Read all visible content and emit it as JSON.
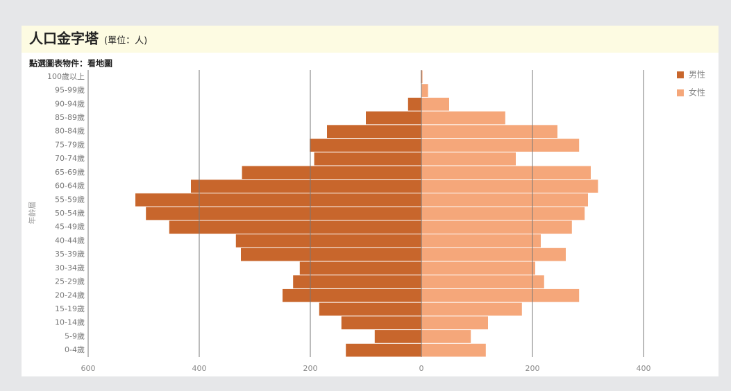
{
  "chart_data": {
    "type": "pyramid",
    "title": "人口金字塔",
    "unit": "(單位：人)",
    "note": "點選圖表物件：看地圖",
    "y_label": "年齡層",
    "categories": [
      "100歲以上",
      "95-99歲",
      "90-94歲",
      "85-89歲",
      "80-84歲",
      "75-79歲",
      "70-74歲",
      "65-69歲",
      "60-64歲",
      "55-59歲",
      "50-54歲",
      "45-49歲",
      "40-44歲",
      "35-39歲",
      "30-34歲",
      "25-29歲",
      "20-24歲",
      "15-19歲",
      "10-14歲",
      "5-9歲",
      "0-4歲"
    ],
    "series": [
      {
        "name": "男性",
        "color": "#c8662c",
        "values": [
          -1,
          0,
          -24,
          -100,
          -170,
          -201,
          -193,
          -323,
          -415,
          -515,
          -496,
          -454,
          -334,
          -325,
          -219,
          -231,
          -250,
          -184,
          -144,
          -84,
          -136
        ]
      },
      {
        "name": "女性",
        "color": "#f5a77a",
        "values": [
          2,
          12,
          50,
          151,
          245,
          284,
          170,
          305,
          318,
          300,
          294,
          271,
          215,
          260,
          205,
          221,
          284,
          181,
          120,
          89,
          116
        ]
      }
    ],
    "xlim": [
      -600,
      500
    ],
    "xticks": [
      {
        "value": -600,
        "label": "600"
      },
      {
        "value": -400,
        "label": "400"
      },
      {
        "value": -200,
        "label": "200"
      },
      0,
      200,
      400
    ],
    "grid": true,
    "legend": "top-right"
  }
}
